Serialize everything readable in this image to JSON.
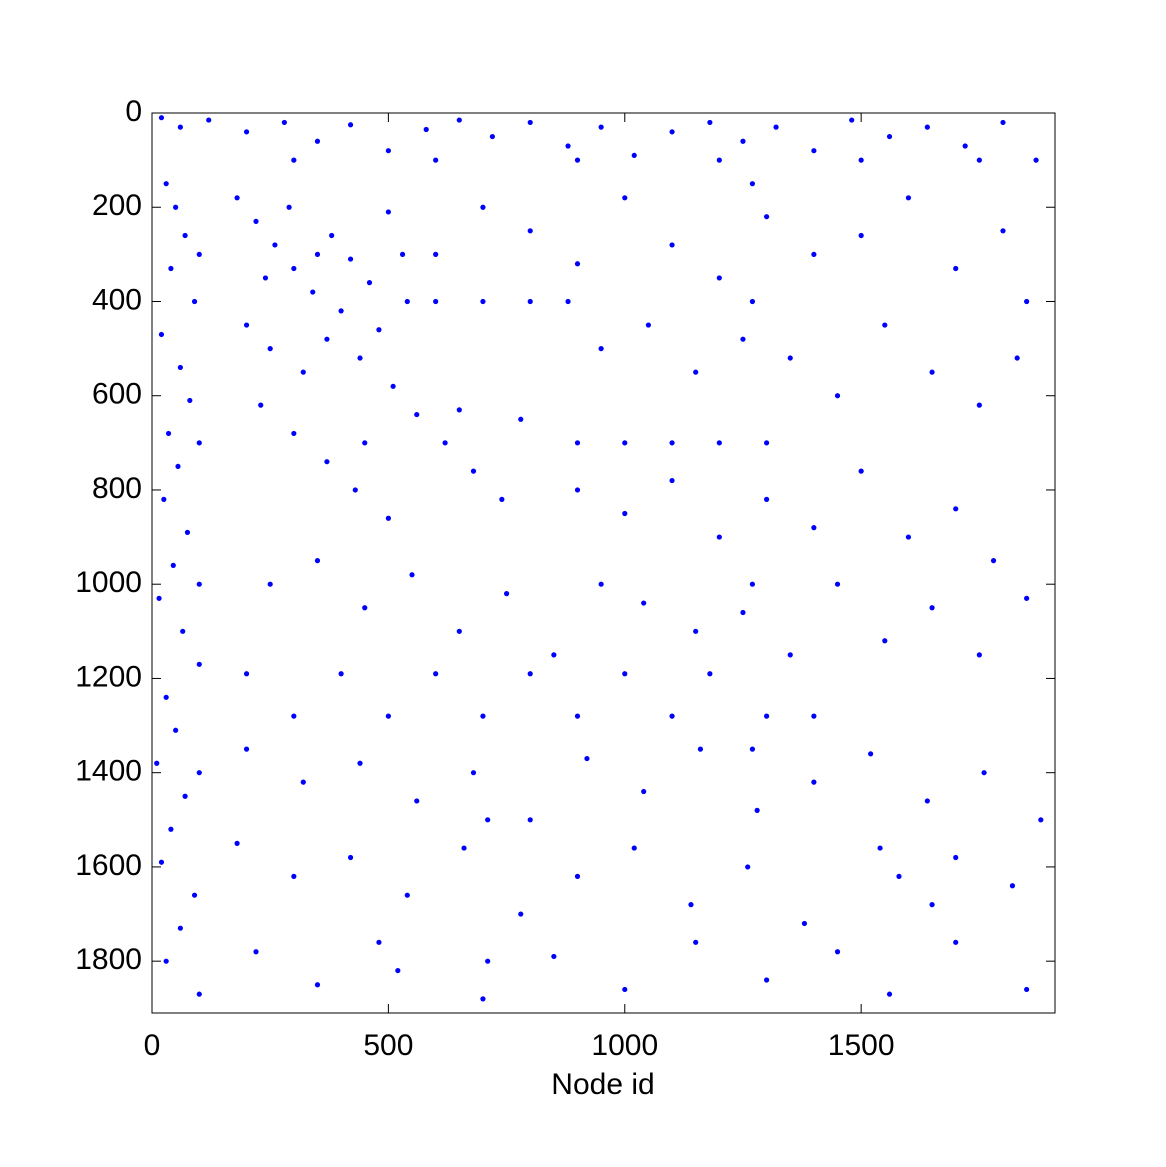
{
  "chart_data": {
    "type": "scatter",
    "x_label": "Node id",
    "color": "#0000ff",
    "y_reversed": true,
    "xlim": [
      0,
      1910
    ],
    "ylim": [
      0,
      1910
    ],
    "xticks": [
      0,
      500,
      1000,
      1500
    ],
    "yticks": [
      0,
      200,
      400,
      600,
      800,
      1000,
      1200,
      1400,
      1600,
      1800
    ],
    "x": [
      20,
      60,
      120,
      200,
      280,
      350,
      420,
      500,
      580,
      650,
      720,
      800,
      880,
      950,
      1020,
      1100,
      1180,
      1250,
      1320,
      1400,
      1480,
      1560,
      1640,
      1720,
      1800,
      1870,
      300,
      600,
      900,
      1200,
      1500,
      1750,
      30,
      50,
      70,
      40,
      90,
      20,
      60,
      80,
      35,
      55,
      25,
      75,
      45,
      15,
      65,
      100,
      30,
      50,
      10,
      70,
      40,
      20,
      90,
      60,
      30,
      100,
      100,
      100,
      100,
      100,
      180,
      220,
      260,
      300,
      340,
      380,
      420,
      460,
      500,
      540,
      200,
      250,
      320,
      370,
      440,
      510,
      240,
      290,
      350,
      400,
      480,
      530,
      600,
      700,
      800,
      880,
      230,
      300,
      370,
      430,
      500,
      560,
      620,
      680,
      740,
      780,
      650,
      450,
      900,
      1000,
      1100,
      1200,
      1300,
      600,
      700,
      800,
      900,
      1000,
      1100,
      1200,
      1300,
      1400,
      1500,
      1600,
      1700,
      1800,
      1850,
      950,
      1050,
      1150,
      1250,
      1350,
      1450,
      1550,
      1650,
      1750,
      1830,
      900,
      1000,
      1100,
      1200,
      1300,
      1400,
      1500,
      1600,
      1700,
      1780,
      250,
      350,
      450,
      550,
      650,
      750,
      850,
      950,
      1040,
      1150,
      1250,
      1350,
      1450,
      1550,
      1650,
      1750,
      1850,
      200,
      400,
      600,
      800,
      1000,
      1180,
      300,
      500,
      700,
      900,
      1100,
      1300,
      1400,
      200,
      320,
      440,
      560,
      680,
      800,
      920,
      1040,
      1160,
      1280,
      1400,
      1520,
      1640,
      1760,
      1880,
      180,
      300,
      420,
      540,
      660,
      780,
      900,
      1020,
      1140,
      1260,
      1380,
      1540,
      1580,
      1650,
      1700,
      1820,
      220,
      350,
      480,
      520,
      700,
      850,
      1000,
      1150,
      1300,
      1450,
      1560,
      1700,
      1850,
      1270,
      1270,
      1270,
      1270,
      710,
      710
    ],
    "values": [
      10,
      30,
      15,
      40,
      20,
      60,
      25,
      80,
      35,
      15,
      50,
      20,
      70,
      30,
      90,
      40,
      20,
      60,
      30,
      80,
      15,
      50,
      30,
      70,
      20,
      100,
      100,
      100,
      100,
      100,
      100,
      100,
      150,
      200,
      260,
      330,
      400,
      470,
      540,
      610,
      680,
      750,
      820,
      890,
      960,
      1030,
      1100,
      1170,
      1240,
      1310,
      1380,
      1450,
      1520,
      1590,
      1660,
      1730,
      1800,
      1870,
      300,
      700,
      1000,
      1400,
      180,
      230,
      280,
      330,
      380,
      260,
      310,
      360,
      210,
      400,
      450,
      500,
      550,
      480,
      520,
      580,
      350,
      200,
      300,
      420,
      460,
      300,
      400,
      400,
      400,
      400,
      620,
      680,
      740,
      800,
      860,
      640,
      700,
      760,
      820,
      650,
      630,
      700,
      700,
      700,
      700,
      700,
      700,
      300,
      200,
      250,
      320,
      180,
      280,
      350,
      220,
      300,
      260,
      180,
      330,
      250,
      400,
      500,
      450,
      550,
      480,
      520,
      600,
      450,
      550,
      620,
      520,
      800,
      850,
      780,
      900,
      820,
      880,
      760,
      900,
      840,
      950,
      1000,
      950,
      1050,
      980,
      1100,
      1020,
      1150,
      1000,
      1040,
      1100,
      1060,
      1150,
      1000,
      1120,
      1050,
      1150,
      1030,
      1190,
      1190,
      1190,
      1190,
      1190,
      1190,
      1280,
      1280,
      1280,
      1280,
      1280,
      1280,
      1280,
      1350,
      1420,
      1380,
      1460,
      1400,
      1500,
      1370,
      1440,
      1350,
      1480,
      1420,
      1360,
      1460,
      1400,
      1500,
      1550,
      1620,
      1580,
      1660,
      1560,
      1700,
      1620,
      1560,
      1680,
      1600,
      1720,
      1560,
      1620,
      1680,
      1580,
      1640,
      1780,
      1850,
      1760,
      1820,
      1880,
      1790,
      1860,
      1760,
      1840,
      1780,
      1870,
      1760,
      1860,
      150,
      400,
      1000,
      1350,
      1500,
      1800
    ]
  }
}
